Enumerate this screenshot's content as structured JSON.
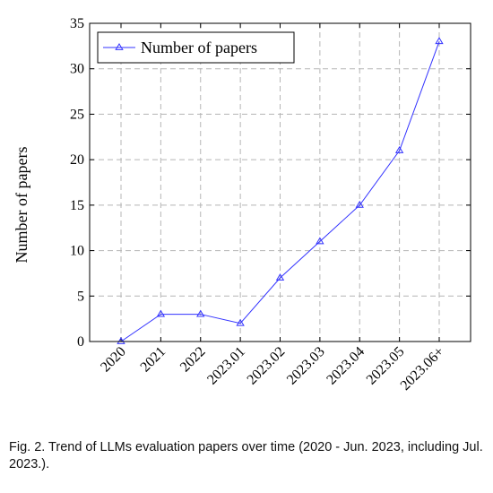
{
  "chart_data": {
    "type": "line",
    "categories": [
      "2020",
      "2021",
      "2022",
      "2023.01",
      "2023.02",
      "2023.03",
      "2023.04",
      "2023.05",
      "2023.06+"
    ],
    "series": [
      {
        "name": "Number of papers",
        "values": [
          0,
          3,
          3,
          2,
          7,
          11,
          15,
          21,
          33
        ],
        "color": "#3333ff",
        "marker": "triangle"
      }
    ],
    "xlabel": "",
    "ylabel": "Number of papers",
    "ylim": [
      0,
      35
    ],
    "yticks": [
      0,
      5,
      10,
      15,
      20,
      25,
      30,
      35
    ],
    "grid": true,
    "legend_position": "top-left"
  },
  "caption": "Fig. 2. Trend of LLMs evaluation papers over time (2020 - Jun. 2023, including Jul. 2023.)."
}
